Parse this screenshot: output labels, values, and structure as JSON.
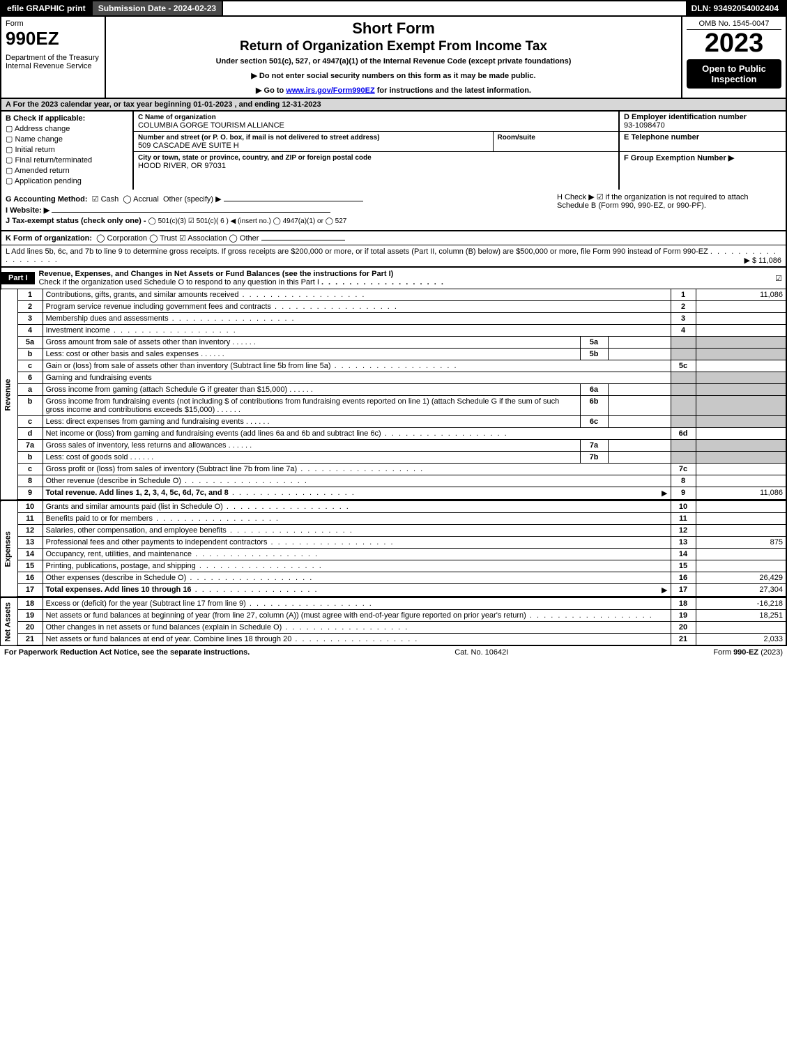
{
  "topbar": {
    "efile": "efile GRAPHIC print",
    "subdate": "Submission Date - 2024-02-23",
    "dln": "DLN: 93492054002404"
  },
  "header": {
    "form_word": "Form",
    "form_num": "990EZ",
    "dept": "Department of the Treasury",
    "irs": "Internal Revenue Service",
    "title1": "Short Form",
    "title2": "Return of Organization Exempt From Income Tax",
    "sub": "Under section 501(c), 527, or 4947(a)(1) of the Internal Revenue Code (except private foundations)",
    "note1": "▶ Do not enter social security numbers on this form as it may be made public.",
    "note2": "▶ Go to www.irs.gov/Form990EZ for instructions and the latest information.",
    "omb": "OMB No. 1545-0047",
    "year": "2023",
    "open": "Open to Public Inspection"
  },
  "A": "A  For the 2023 calendar year, or tax year beginning 01-01-2023 , and ending 12-31-2023",
  "B": {
    "label": "B  Check if applicable:",
    "opts": [
      "Address change",
      "Name change",
      "Initial return",
      "Final return/terminated",
      "Amended return",
      "Application pending"
    ]
  },
  "C": {
    "name_lbl": "C Name of organization",
    "name": "COLUMBIA GORGE TOURISM ALLIANCE",
    "addr_lbl": "Number and street (or P. O. box, if mail is not delivered to street address)",
    "room_lbl": "Room/suite",
    "addr": "509 CASCADE AVE SUITE H",
    "city_lbl": "City or town, state or province, country, and ZIP or foreign postal code",
    "city": "HOOD RIVER, OR  97031"
  },
  "D": {
    "lbl": "D Employer identification number",
    "val": "93-1098470"
  },
  "E": {
    "lbl": "E Telephone number",
    "val": ""
  },
  "F": {
    "lbl": "F Group Exemption Number  ▶",
    "val": ""
  },
  "G": {
    "lbl": "G Accounting Method:",
    "cash": "Cash",
    "accrual": "Accrual",
    "other": "Other (specify) ▶"
  },
  "H": {
    "txt": "H  Check ▶ ☑ if the organization is not required to attach Schedule B (Form 990, 990-EZ, or 990-PF)."
  },
  "I": {
    "lbl": "I Website: ▶"
  },
  "J": {
    "lbl": "J Tax-exempt status (check only one) -",
    "opts": "◯ 501(c)(3)  ☑ 501(c)( 6 ) ◀ (insert no.)  ◯ 4947(a)(1) or  ◯ 527"
  },
  "K": {
    "lbl": "K Form of organization:",
    "opts": "◯ Corporation   ◯ Trust   ☑ Association   ◯ Other"
  },
  "L": {
    "txt": "L Add lines 5b, 6c, and 7b to line 9 to determine gross receipts. If gross receipts are $200,000 or more, or if total assets (Part II, column (B) below) are $500,000 or more, file Form 990 instead of Form 990-EZ",
    "amt": "▶ $ 11,086"
  },
  "part1": {
    "tag": "Part I",
    "title": "Revenue, Expenses, and Changes in Net Assets or Fund Balances (see the instructions for Part I)",
    "check": "Check if the organization used Schedule O to respond to any question in this Part I"
  },
  "sidebars": {
    "rev": "Revenue",
    "exp": "Expenses",
    "net": "Net Assets"
  },
  "rev": [
    {
      "n": "1",
      "d": "Contributions, gifts, grants, and similar amounts received",
      "rn": "1",
      "a": "11,086"
    },
    {
      "n": "2",
      "d": "Program service revenue including government fees and contracts",
      "rn": "2",
      "a": ""
    },
    {
      "n": "3",
      "d": "Membership dues and assessments",
      "rn": "3",
      "a": ""
    },
    {
      "n": "4",
      "d": "Investment income",
      "rn": "4",
      "a": ""
    },
    {
      "n": "5a",
      "d": "Gross amount from sale of assets other than inventory",
      "in": "5a"
    },
    {
      "n": "b",
      "d": "Less: cost or other basis and sales expenses",
      "in": "5b"
    },
    {
      "n": "c",
      "d": "Gain or (loss) from sale of assets other than inventory (Subtract line 5b from line 5a)",
      "rn": "5c",
      "a": ""
    },
    {
      "n": "6",
      "d": "Gaming and fundraising events"
    },
    {
      "n": "a",
      "d": "Gross income from gaming (attach Schedule G if greater than $15,000)",
      "in": "6a"
    },
    {
      "n": "b",
      "d": "Gross income from fundraising events (not including $                    of contributions from fundraising events reported on line 1) (attach Schedule G if the sum of such gross income and contributions exceeds $15,000)",
      "in": "6b"
    },
    {
      "n": "c",
      "d": "Less: direct expenses from gaming and fundraising events",
      "in": "6c"
    },
    {
      "n": "d",
      "d": "Net income or (loss) from gaming and fundraising events (add lines 6a and 6b and subtract line 6c)",
      "rn": "6d",
      "a": ""
    },
    {
      "n": "7a",
      "d": "Gross sales of inventory, less returns and allowances",
      "in": "7a"
    },
    {
      "n": "b",
      "d": "Less: cost of goods sold",
      "in": "7b"
    },
    {
      "n": "c",
      "d": "Gross profit or (loss) from sales of inventory (Subtract line 7b from line 7a)",
      "rn": "7c",
      "a": ""
    },
    {
      "n": "8",
      "d": "Other revenue (describe in Schedule O)",
      "rn": "8",
      "a": ""
    },
    {
      "n": "9",
      "d": "Total revenue. Add lines 1, 2, 3, 4, 5c, 6d, 7c, and 8",
      "rn": "9",
      "a": "11,086",
      "arrow": "▶",
      "bold": true
    }
  ],
  "exp": [
    {
      "n": "10",
      "d": "Grants and similar amounts paid (list in Schedule O)",
      "rn": "10",
      "a": ""
    },
    {
      "n": "11",
      "d": "Benefits paid to or for members",
      "rn": "11",
      "a": ""
    },
    {
      "n": "12",
      "d": "Salaries, other compensation, and employee benefits",
      "rn": "12",
      "a": ""
    },
    {
      "n": "13",
      "d": "Professional fees and other payments to independent contractors",
      "rn": "13",
      "a": "875"
    },
    {
      "n": "14",
      "d": "Occupancy, rent, utilities, and maintenance",
      "rn": "14",
      "a": ""
    },
    {
      "n": "15",
      "d": "Printing, publications, postage, and shipping",
      "rn": "15",
      "a": ""
    },
    {
      "n": "16",
      "d": "Other expenses (describe in Schedule O)",
      "rn": "16",
      "a": "26,429"
    },
    {
      "n": "17",
      "d": "Total expenses. Add lines 10 through 16",
      "rn": "17",
      "a": "27,304",
      "arrow": "▶",
      "bold": true
    }
  ],
  "net": [
    {
      "n": "18",
      "d": "Excess or (deficit) for the year (Subtract line 17 from line 9)",
      "rn": "18",
      "a": "-16,218"
    },
    {
      "n": "19",
      "d": "Net assets or fund balances at beginning of year (from line 27, column (A)) (must agree with end-of-year figure reported on prior year's return)",
      "rn": "19",
      "a": "18,251"
    },
    {
      "n": "20",
      "d": "Other changes in net assets or fund balances (explain in Schedule O)",
      "rn": "20",
      "a": ""
    },
    {
      "n": "21",
      "d": "Net assets or fund balances at end of year. Combine lines 18 through 20",
      "rn": "21",
      "a": "2,033"
    }
  ],
  "footer": {
    "left": "For Paperwork Reduction Act Notice, see the separate instructions.",
    "mid": "Cat. No. 10642I",
    "right_pre": "Form ",
    "right_bold": "990-EZ",
    "right_post": " (2023)"
  }
}
